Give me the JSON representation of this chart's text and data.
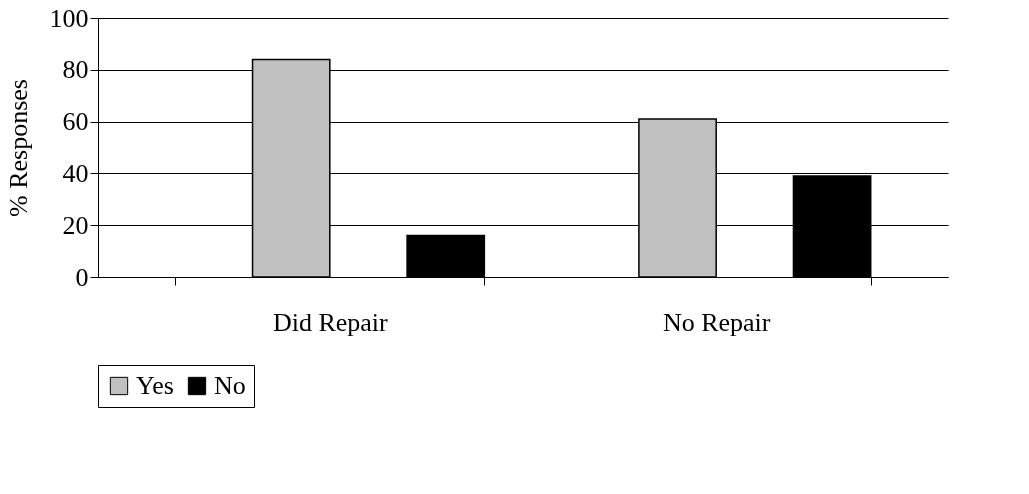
{
  "chart_data": {
    "type": "bar",
    "ylabel": "% Responses",
    "categories": [
      "Did Repair",
      "No Repair"
    ],
    "series": [
      {
        "name": "Yes",
        "color": "#c0c0c0",
        "values": [
          84,
          61
        ]
      },
      {
        "name": "No",
        "color": "#000000",
        "values": [
          16,
          39
        ]
      }
    ],
    "ylim": [
      0,
      100
    ],
    "yticks": [
      0,
      20,
      40,
      60,
      80,
      100
    ],
    "grid": "y",
    "legend": "bottom"
  }
}
